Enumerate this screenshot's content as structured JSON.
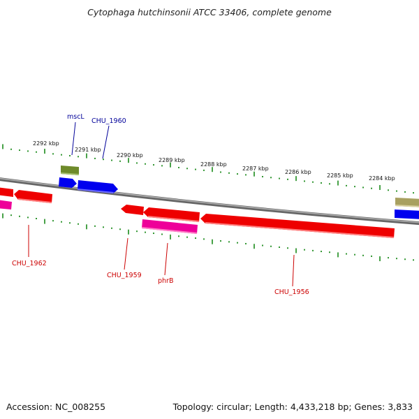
{
  "title": "Cytophaga hutchinsonii ATCC 33406, complete genome",
  "footer": {
    "accession": "Accession: NC_008255",
    "topology": "Topology: circular; Length: 4,433,218 bp; Genes: 3,833"
  },
  "colors": {
    "backbone": "#8a8a8a",
    "ticks": "#1a8a1a",
    "forward_cds": "#0000ee",
    "reverse_cds": "#ee0000",
    "magenta": "#ee0099",
    "olive": "#6e8a2a",
    "khaki": "#a8a060",
    "label_forward": "#000099",
    "label_reverse": "#cc0000"
  },
  "scale_labels": [
    "2292 kbp",
    "2291 kbp",
    "2290 kbp",
    "2289 kbp",
    "2288 kbp",
    "2287 kbp",
    "2286 kbp",
    "2285 kbp",
    "2284 kbp"
  ],
  "gene_labels": [
    {
      "text": "mscL",
      "strand": "forward"
    },
    {
      "text": "CHU_1960",
      "strand": "forward"
    },
    {
      "text": "CHU_1962",
      "strand": "reverse"
    },
    {
      "text": "CHU_1959",
      "strand": "reverse"
    },
    {
      "text": "phrB",
      "strand": "reverse"
    },
    {
      "text": "CHU_1956",
      "strand": "reverse"
    }
  ]
}
